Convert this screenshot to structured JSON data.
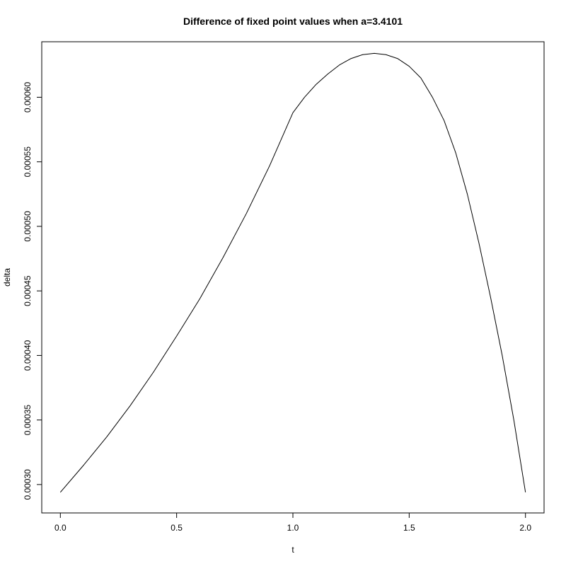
{
  "chart_data": {
    "type": "line",
    "title": "Difference of fixed point values when a=3.4101",
    "xlabel": "t",
    "ylabel": "delta",
    "xlim": [
      -0.08,
      2.08
    ],
    "ylim": [
      0.000278,
      0.000643
    ],
    "x_ticks": [
      {
        "value": 0.0,
        "label": "0.0"
      },
      {
        "value": 0.5,
        "label": "0.5"
      },
      {
        "value": 1.0,
        "label": "1.0"
      },
      {
        "value": 1.5,
        "label": "1.5"
      },
      {
        "value": 2.0,
        "label": "2.0"
      }
    ],
    "y_ticks": [
      {
        "value": 0.0003,
        "label": "0.00030"
      },
      {
        "value": 0.00035,
        "label": "0.00035"
      },
      {
        "value": 0.0004,
        "label": "0.00040"
      },
      {
        "value": 0.00045,
        "label": "0.00045"
      },
      {
        "value": 0.0005,
        "label": "0.00050"
      },
      {
        "value": 0.00055,
        "label": "0.00055"
      },
      {
        "value": 0.0006,
        "label": "0.00060"
      }
    ],
    "grid": false,
    "series": [
      {
        "color": "#000000",
        "points": [
          [
            0.0,
            0.000294
          ],
          [
            0.1,
            0.000315
          ],
          [
            0.2,
            0.000337
          ],
          [
            0.3,
            0.000361
          ],
          [
            0.4,
            0.000387
          ],
          [
            0.5,
            0.000415
          ],
          [
            0.6,
            0.000444
          ],
          [
            0.7,
            0.000476
          ],
          [
            0.8,
            0.00051
          ],
          [
            0.9,
            0.000547
          ],
          [
            1.0,
            0.000588
          ],
          [
            1.05,
            0.0006
          ],
          [
            1.1,
            0.00061
          ],
          [
            1.15,
            0.000618
          ],
          [
            1.2,
            0.000625
          ],
          [
            1.25,
            0.00063
          ],
          [
            1.3,
            0.000633
          ],
          [
            1.35,
            0.000634
          ],
          [
            1.4,
            0.000633
          ],
          [
            1.45,
            0.00063
          ],
          [
            1.5,
            0.000624
          ],
          [
            1.55,
            0.000615
          ],
          [
            1.6,
            0.0006
          ],
          [
            1.65,
            0.000582
          ],
          [
            1.7,
            0.000557
          ],
          [
            1.75,
            0.000525
          ],
          [
            1.8,
            0.000487
          ],
          [
            1.85,
            0.000445
          ],
          [
            1.9,
            0.0004
          ],
          [
            1.95,
            0.00035
          ],
          [
            2.0,
            0.000294
          ]
        ]
      }
    ]
  }
}
